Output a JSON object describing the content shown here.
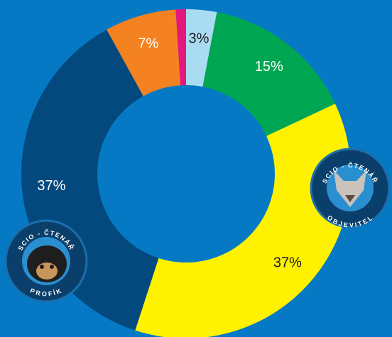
{
  "chart_data": {
    "type": "donut",
    "categories": [
      null,
      null,
      null,
      null,
      null,
      null
    ],
    "values": [
      3,
      15,
      37,
      37,
      7,
      1
    ],
    "value_labels": [
      "3%",
      "15%",
      "37%",
      "37%",
      "7%",
      null
    ],
    "colors": [
      "#a9dcf1",
      "#00a651",
      "#fff200",
      "#03497d",
      "#f58220",
      "#e5177b"
    ]
  },
  "badges": [
    {
      "top": "SCIO - ČTENÁŘ",
      "bottom": "OBJEVITEL"
    },
    {
      "top": "SCIO - ČTENÁŘ",
      "bottom": "PROFÍK"
    }
  ]
}
